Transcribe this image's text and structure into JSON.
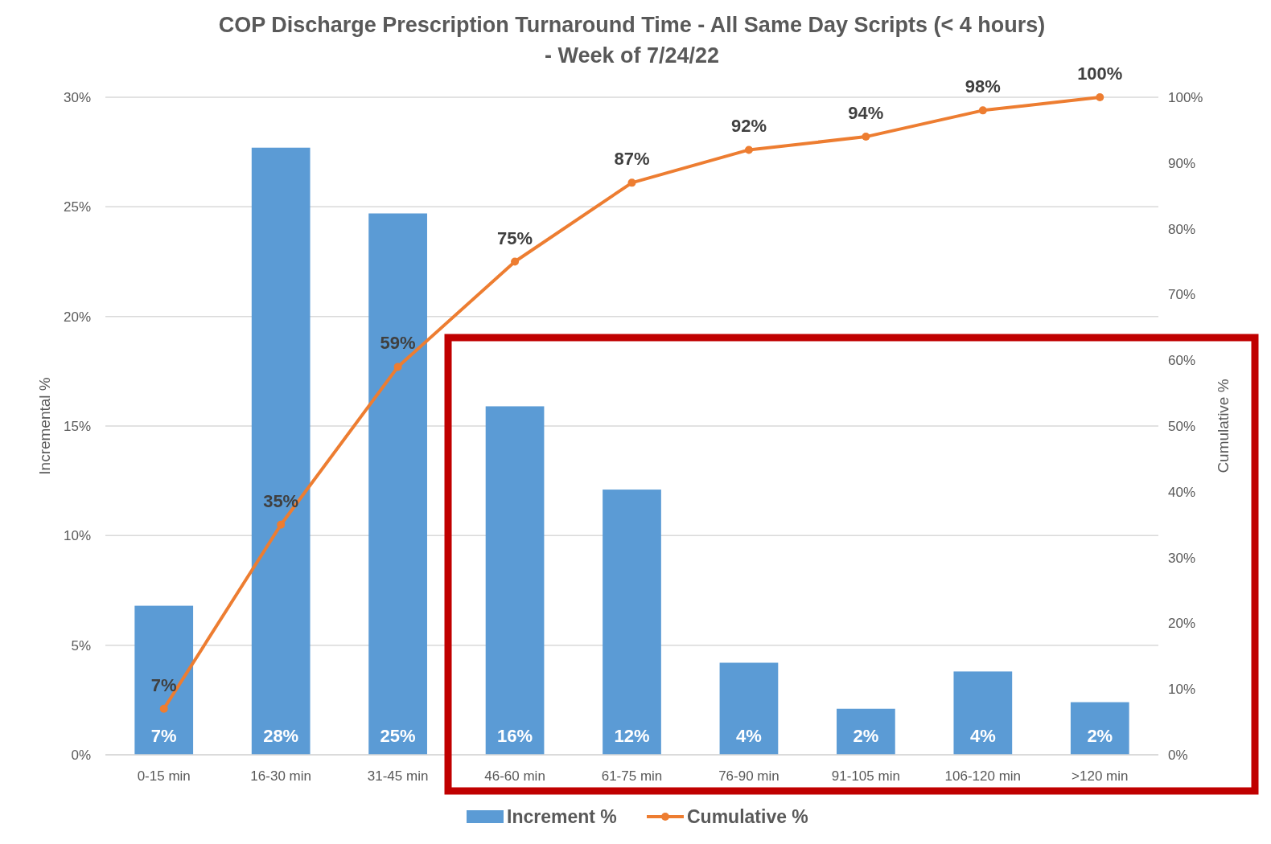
{
  "chart_data": {
    "type": "bar",
    "title": "COP Discharge Prescription Turnaround Time - All Same Day Scripts (< 4 hours)\n- Week of 7/24/22",
    "ylabel": "Incremental %",
    "y2label": "Cumulative %",
    "categories": [
      "0-15 min",
      "16-30 min",
      "31-45 min",
      "46-60 min",
      "61-75 min",
      "76-90 min",
      "91-105 min",
      "106-120 min",
      ">120 min"
    ],
    "series": [
      {
        "name": "Increment %",
        "color": "#5b9bd5",
        "values": [
          6.8,
          27.7,
          24.7,
          15.9,
          12.1,
          4.2,
          2.1,
          3.8,
          2.4
        ],
        "value_labels": [
          "7%",
          "28%",
          "25%",
          "16%",
          "12%",
          "4%",
          "2%",
          "4%",
          "2%"
        ]
      },
      {
        "name": "Cumulative %",
        "type": "line",
        "axis": "y2",
        "color": "#ed7d31",
        "marker": "circle",
        "values": [
          7,
          35,
          59,
          75,
          87,
          92,
          94,
          98,
          100
        ],
        "value_labels": [
          "7%",
          "35%",
          "59%",
          "75%",
          "87%",
          "92%",
          "94%",
          "98%",
          "100%"
        ]
      }
    ],
    "ylim": [
      0,
      30
    ],
    "yticks": [
      {
        "value": 0,
        "label": "0%"
      },
      {
        "value": 5,
        "label": "5%"
      },
      {
        "value": 10,
        "label": "10%"
      },
      {
        "value": 15,
        "label": "15%"
      },
      {
        "value": 20,
        "label": "20%"
      },
      {
        "value": 25,
        "label": "25%"
      },
      {
        "value": 30,
        "label": "30%"
      }
    ],
    "y2lim": [
      0,
      100
    ],
    "y2ticks": [
      {
        "value": 0,
        "label": "0%"
      },
      {
        "value": 10,
        "label": "10%"
      },
      {
        "value": 20,
        "label": "20%"
      },
      {
        "value": 30,
        "label": "30%"
      },
      {
        "value": 40,
        "label": "40%"
      },
      {
        "value": 50,
        "label": "50%"
      },
      {
        "value": 60,
        "label": "60%"
      },
      {
        "value": 70,
        "label": "70%"
      },
      {
        "value": 80,
        "label": "80%"
      },
      {
        "value": 90,
        "label": "90%"
      },
      {
        "value": 100,
        "label": "100%"
      }
    ],
    "grid": "y",
    "legend": "bottom"
  }
}
